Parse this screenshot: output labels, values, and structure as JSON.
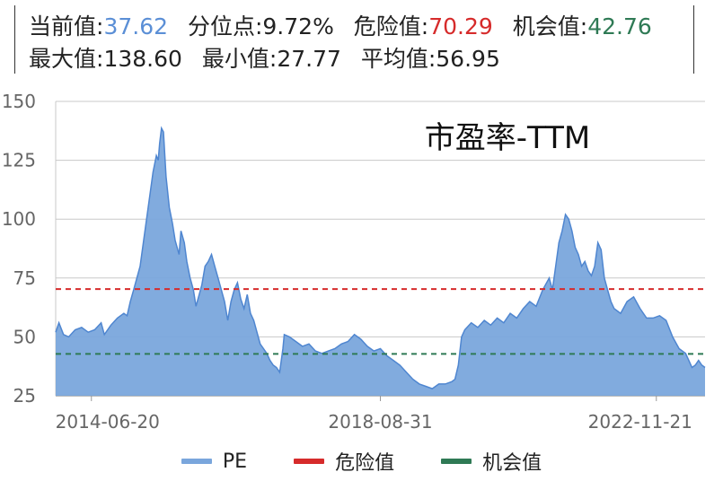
{
  "stats": {
    "current_label": "当前值:",
    "current_value": "37.62",
    "percentile_label": "分位点:",
    "percentile_value": "9.72%",
    "danger_label": "危险值:",
    "danger_value": "70.29",
    "opportunity_label": "机会值:",
    "opportunity_value": "42.76",
    "max_label": "最大值:",
    "max_value": "138.60",
    "min_label": "最小值:",
    "min_value": "27.77",
    "avg_label": "平均值:",
    "avg_value": "56.95"
  },
  "colors": {
    "pe_fill": "#7aa6dc",
    "pe_line": "#4f86d0",
    "danger": "#d62b2b",
    "opportunity": "#2f7a55",
    "value_blue": "#5b8fd6"
  },
  "chart_data": {
    "type": "area",
    "title": "市盈率-TTM",
    "ylim": [
      25,
      150
    ],
    "yticks": [
      25,
      50,
      75,
      100,
      125,
      150
    ],
    "xticks": [
      {
        "x": 0.055,
        "label": "2014-06-20"
      },
      {
        "x": 0.5,
        "label": "2018-08-31"
      },
      {
        "x": 0.925,
        "label": "2022-11-21"
      }
    ],
    "grid": true,
    "legend_position": "bottom",
    "series": [
      {
        "name": "PE",
        "style": "area",
        "x_range": [
          0,
          1
        ],
        "points": [
          [
            0.0,
            52
          ],
          [
            0.005,
            56
          ],
          [
            0.012,
            51
          ],
          [
            0.02,
            50
          ],
          [
            0.03,
            53
          ],
          [
            0.04,
            54
          ],
          [
            0.05,
            52
          ],
          [
            0.06,
            53
          ],
          [
            0.07,
            56
          ],
          [
            0.075,
            51
          ],
          [
            0.085,
            55
          ],
          [
            0.095,
            58
          ],
          [
            0.105,
            60
          ],
          [
            0.11,
            59
          ],
          [
            0.115,
            65
          ],
          [
            0.12,
            70
          ],
          [
            0.125,
            75
          ],
          [
            0.13,
            80
          ],
          [
            0.135,
            90
          ],
          [
            0.14,
            100
          ],
          [
            0.145,
            110
          ],
          [
            0.15,
            120
          ],
          [
            0.155,
            127
          ],
          [
            0.158,
            125
          ],
          [
            0.16,
            132
          ],
          [
            0.163,
            138.6
          ],
          [
            0.166,
            137
          ],
          [
            0.17,
            118
          ],
          [
            0.175,
            105
          ],
          [
            0.18,
            98
          ],
          [
            0.184,
            91
          ],
          [
            0.187,
            88
          ],
          [
            0.19,
            85
          ],
          [
            0.193,
            95
          ],
          [
            0.198,
            90
          ],
          [
            0.202,
            82
          ],
          [
            0.207,
            75
          ],
          [
            0.212,
            70
          ],
          [
            0.216,
            63
          ],
          [
            0.22,
            67
          ],
          [
            0.225,
            72
          ],
          [
            0.23,
            80
          ],
          [
            0.235,
            82
          ],
          [
            0.24,
            85
          ],
          [
            0.245,
            80
          ],
          [
            0.25,
            75
          ],
          [
            0.255,
            70
          ],
          [
            0.26,
            65
          ],
          [
            0.265,
            57
          ],
          [
            0.27,
            65
          ],
          [
            0.275,
            70
          ],
          [
            0.28,
            73
          ],
          [
            0.285,
            66
          ],
          [
            0.29,
            62
          ],
          [
            0.295,
            68
          ],
          [
            0.3,
            60
          ],
          [
            0.305,
            57
          ],
          [
            0.31,
            52
          ],
          [
            0.315,
            47
          ],
          [
            0.32,
            45
          ],
          [
            0.325,
            43
          ],
          [
            0.33,
            40
          ],
          [
            0.335,
            38
          ],
          [
            0.34,
            37
          ],
          [
            0.345,
            35
          ],
          [
            0.35,
            45
          ],
          [
            0.352,
            51
          ],
          [
            0.36,
            50
          ],
          [
            0.37,
            48
          ],
          [
            0.38,
            46
          ],
          [
            0.39,
            47
          ],
          [
            0.4,
            44
          ],
          [
            0.41,
            43
          ],
          [
            0.42,
            44
          ],
          [
            0.43,
            45
          ],
          [
            0.44,
            47
          ],
          [
            0.45,
            48
          ],
          [
            0.46,
            51
          ],
          [
            0.47,
            49
          ],
          [
            0.48,
            46
          ],
          [
            0.49,
            44
          ],
          [
            0.5,
            45
          ],
          [
            0.51,
            42
          ],
          [
            0.52,
            40
          ],
          [
            0.53,
            38
          ],
          [
            0.54,
            35
          ],
          [
            0.55,
            32
          ],
          [
            0.56,
            30
          ],
          [
            0.57,
            29
          ],
          [
            0.58,
            28
          ],
          [
            0.59,
            30
          ],
          [
            0.6,
            30
          ],
          [
            0.61,
            31
          ],
          [
            0.615,
            32
          ],
          [
            0.62,
            38
          ],
          [
            0.625,
            50
          ],
          [
            0.63,
            53
          ],
          [
            0.64,
            56
          ],
          [
            0.65,
            54
          ],
          [
            0.66,
            57
          ],
          [
            0.67,
            55
          ],
          [
            0.68,
            58
          ],
          [
            0.69,
            56
          ],
          [
            0.7,
            60
          ],
          [
            0.71,
            58
          ],
          [
            0.72,
            62
          ],
          [
            0.73,
            65
          ],
          [
            0.74,
            63
          ],
          [
            0.75,
            70
          ],
          [
            0.76,
            75
          ],
          [
            0.765,
            70
          ],
          [
            0.77,
            80
          ],
          [
            0.775,
            90
          ],
          [
            0.78,
            95
          ],
          [
            0.785,
            102
          ],
          [
            0.79,
            100
          ],
          [
            0.795,
            95
          ],
          [
            0.8,
            88
          ],
          [
            0.805,
            85
          ],
          [
            0.81,
            80
          ],
          [
            0.815,
            82
          ],
          [
            0.82,
            78
          ],
          [
            0.825,
            76
          ],
          [
            0.83,
            80
          ],
          [
            0.835,
            90
          ],
          [
            0.84,
            87
          ],
          [
            0.845,
            75
          ],
          [
            0.85,
            70
          ],
          [
            0.855,
            65
          ],
          [
            0.86,
            62
          ],
          [
            0.87,
            60
          ],
          [
            0.88,
            65
          ],
          [
            0.89,
            67
          ],
          [
            0.9,
            62
          ],
          [
            0.91,
            58
          ],
          [
            0.92,
            58
          ],
          [
            0.93,
            59
          ],
          [
            0.94,
            57
          ],
          [
            0.95,
            50
          ],
          [
            0.96,
            45
          ],
          [
            0.97,
            43
          ],
          [
            0.975,
            40
          ],
          [
            0.98,
            37
          ],
          [
            0.985,
            38
          ],
          [
            0.99,
            40
          ],
          [
            0.995,
            38
          ],
          [
            1.0,
            37
          ]
        ]
      },
      {
        "name": "危险值",
        "style": "dashed",
        "value": 70.29
      },
      {
        "name": "机会值",
        "style": "dashed",
        "value": 42.76
      }
    ],
    "legend": [
      "PE",
      "危险值",
      "机会值"
    ]
  }
}
